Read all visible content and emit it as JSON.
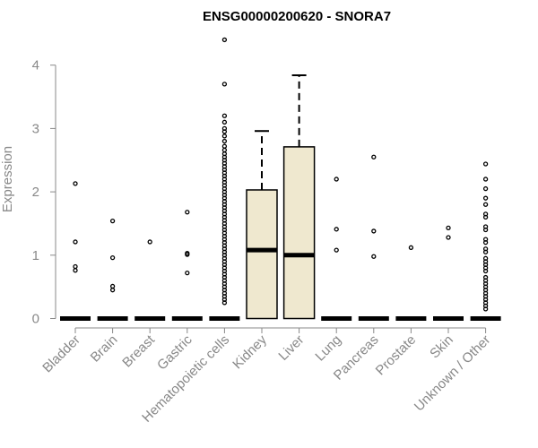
{
  "chart_data": {
    "type": "box",
    "title": "ENSG00000200620 - SNORA7",
    "xlabel": "",
    "ylabel": "Expression",
    "ylim": [
      0,
      4.4
    ],
    "yticks": [
      0,
      1,
      2,
      3,
      4
    ],
    "box_fill": "#efe8cf",
    "categories": [
      "Bladder",
      "Brain",
      "Breast",
      "Gastric",
      "Hematopoietic cells",
      "Kidney",
      "Liver",
      "Lung",
      "Pancreas",
      "Prostate",
      "Skin",
      "Unknown / Other"
    ],
    "boxes": [
      {
        "category": "Bladder",
        "q1": 0,
        "median": 0,
        "q3": 0,
        "whisker_low": 0,
        "whisker_high": 0,
        "outliers": [
          2.13,
          1.21,
          0.82,
          0.76
        ]
      },
      {
        "category": "Brain",
        "q1": 0,
        "median": 0,
        "q3": 0,
        "whisker_low": 0,
        "whisker_high": 0,
        "outliers": [
          1.54,
          0.96,
          0.51,
          0.45
        ]
      },
      {
        "category": "Breast",
        "q1": 0,
        "median": 0,
        "q3": 0,
        "whisker_low": 0,
        "whisker_high": 0,
        "outliers": [
          1.21
        ]
      },
      {
        "category": "Gastric",
        "q1": 0,
        "median": 0,
        "q3": 0,
        "whisker_low": 0,
        "whisker_high": 0,
        "outliers": [
          1.68,
          1.03,
          1.01,
          0.72
        ]
      },
      {
        "category": "Hematopoietic cells",
        "q1": 0,
        "median": 0,
        "q3": 0,
        "whisker_low": 0,
        "whisker_high": 0,
        "outliers": [
          4.4,
          3.7,
          3.2,
          3.1,
          3.0,
          2.95,
          2.88,
          2.8,
          2.72,
          2.66,
          2.6,
          2.55,
          2.5,
          2.45,
          2.4,
          2.35,
          2.3,
          2.25,
          2.2,
          2.15,
          2.1,
          2.05,
          2.0,
          1.95,
          1.9,
          1.85,
          1.8,
          1.75,
          1.7,
          1.65,
          1.6,
          1.55,
          1.5,
          1.45,
          1.4,
          1.35,
          1.3,
          1.25,
          1.2,
          1.15,
          1.1,
          1.05,
          1.0,
          0.95,
          0.9,
          0.85,
          0.8,
          0.75,
          0.7,
          0.65,
          0.6,
          0.55,
          0.5,
          0.45,
          0.4,
          0.35,
          0.3,
          0.25
        ]
      },
      {
        "category": "Kidney",
        "q1": 0,
        "median": 1.08,
        "q3": 2.03,
        "whisker_low": 0,
        "whisker_high": 2.96,
        "outliers": []
      },
      {
        "category": "Liver",
        "q1": 0,
        "median": 1.0,
        "q3": 2.71,
        "whisker_low": 0,
        "whisker_high": 3.84,
        "outliers": []
      },
      {
        "category": "Lung",
        "q1": 0,
        "median": 0,
        "q3": 0,
        "whisker_low": 0,
        "whisker_high": 0,
        "outliers": [
          2.2,
          1.41,
          1.08
        ]
      },
      {
        "category": "Pancreas",
        "q1": 0,
        "median": 0,
        "q3": 0,
        "whisker_low": 0,
        "whisker_high": 0,
        "outliers": [
          2.55,
          1.38,
          0.98
        ]
      },
      {
        "category": "Prostate",
        "q1": 0,
        "median": 0,
        "q3": 0,
        "whisker_low": 0,
        "whisker_high": 0,
        "outliers": [
          1.12
        ]
      },
      {
        "category": "Skin",
        "q1": 0,
        "median": 0,
        "q3": 0,
        "whisker_low": 0,
        "whisker_high": 0,
        "outliers": [
          1.43,
          1.28
        ]
      },
      {
        "category": "Unknown / Other",
        "q1": 0,
        "median": 0,
        "q3": 0,
        "whisker_low": 0,
        "whisker_high": 0,
        "outliers": [
          2.44,
          2.2,
          2.05,
          1.9,
          1.8,
          1.65,
          1.6,
          1.45,
          1.4,
          1.25,
          1.2,
          1.1,
          1.05,
          0.95,
          0.9,
          0.85,
          0.8,
          0.75,
          0.65,
          0.6,
          0.55,
          0.5,
          0.45,
          0.4,
          0.35,
          0.3,
          0.25,
          0.2,
          0.15
        ]
      }
    ]
  }
}
